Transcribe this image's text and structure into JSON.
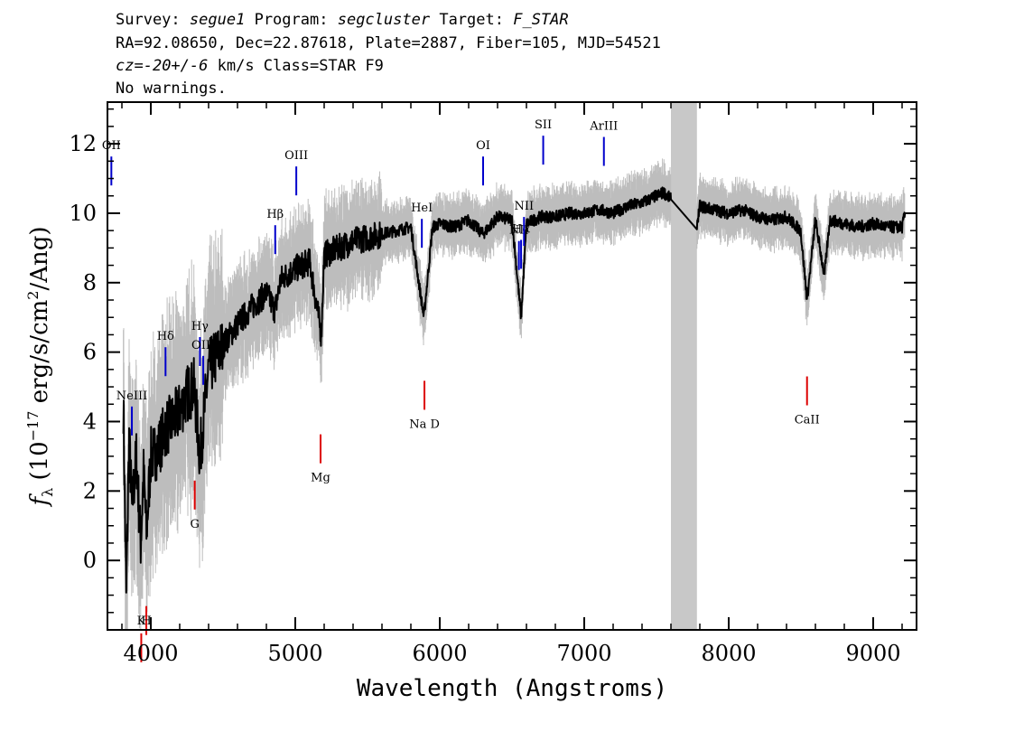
{
  "header": {
    "line1": {
      "survey_label": "Survey:",
      "survey_value": "segue1",
      "program_label": "Program:",
      "program_value": "segcluster",
      "target_label": "Target:",
      "target_value": "F_STAR"
    },
    "line2": "RA=92.08650, Dec=22.87618, Plate=2887, Fiber=105, MJD=54521",
    "line3": {
      "cz_prefix": "cz=",
      "cz_value": "-20+/-6",
      "cz_suffix": " km/s Class=STAR F9"
    },
    "line4": "No warnings."
  },
  "chart_data": {
    "type": "line",
    "xlabel": "Wavelength (Angstroms)",
    "ylabel": "f_λ (10^-17 erg/s/cm^2/Ang)",
    "xlim": [
      3700,
      9300
    ],
    "ylim": [
      -2.0,
      13.2
    ],
    "xticks": [
      4000,
      5000,
      6000,
      7000,
      8000,
      9000
    ],
    "yticks": [
      0,
      2,
      4,
      6,
      8,
      10,
      12
    ],
    "masked_region": [
      7600,
      7780
    ],
    "colors": {
      "flux": "#000000",
      "noise": "#bdbdbd",
      "emission": "#0000cc",
      "absorption": "#dd0000",
      "mask": "#c8c8c8"
    },
    "series": [
      {
        "x": [
          3810,
          3830,
          3850,
          3870,
          3900,
          3930,
          3950,
          3970,
          4000,
          4050,
          4100,
          4150,
          4200,
          4250,
          4300,
          4340,
          4400,
          4500,
          4600,
          4700,
          4800,
          4860,
          4900,
          5000,
          5100,
          5180,
          5200,
          5300,
          5400,
          5500,
          5600,
          5700,
          5800,
          5890,
          5950,
          6000,
          6100,
          6200,
          6300,
          6400,
          6500,
          6563,
          6600,
          6700,
          6800,
          6900,
          7000,
          7100,
          7200,
          7300,
          7400,
          7500,
          7550,
          7600,
          7780,
          7800,
          7900,
          8000,
          8100,
          8200,
          8300,
          8400,
          8498,
          8542,
          8600,
          8662,
          8700,
          8800,
          8900,
          9000,
          9100,
          9200,
          9220
        ],
        "y": [
          4.5,
          -1.0,
          3.5,
          1.5,
          3.0,
          0.5,
          2.5,
          0.8,
          3.0,
          3.2,
          3.8,
          4.0,
          4.3,
          4.8,
          5.0,
          3.0,
          5.5,
          6.2,
          6.8,
          7.3,
          7.7,
          7.2,
          8.1,
          8.4,
          8.6,
          6.5,
          8.8,
          9.0,
          9.2,
          9.3,
          9.4,
          9.5,
          9.6,
          7.0,
          9.6,
          9.7,
          9.6,
          9.8,
          9.4,
          9.9,
          9.8,
          7.0,
          9.7,
          9.9,
          9.9,
          10.0,
          10.0,
          10.1,
          10.0,
          10.2,
          10.3,
          10.5,
          10.6,
          10.4,
          9.7,
          10.2,
          10.1,
          10.0,
          10.1,
          9.9,
          9.8,
          9.9,
          9.5,
          7.5,
          9.8,
          8.2,
          9.8,
          9.7,
          9.6,
          9.7,
          9.6,
          9.6,
          10.0
        ]
      }
    ],
    "emission_lines": [
      {
        "label": "OII",
        "x": 3727
      },
      {
        "label": "NeIII",
        "x": 3869
      },
      {
        "label": "Hδ",
        "x": 4102
      },
      {
        "label": "Hγ",
        "x": 4340
      },
      {
        "label": "OIII",
        "x": 4363
      },
      {
        "label": "Hβ",
        "x": 4861
      },
      {
        "label": "OIII",
        "x": 5007
      },
      {
        "label": "HeI",
        "x": 5876
      },
      {
        "label": "OI",
        "x": 6300
      },
      {
        "label": "NII",
        "x": 6548
      },
      {
        "label": "Hα",
        "x": 6563
      },
      {
        "label": "NII",
        "x": 6583
      },
      {
        "label": "SII",
        "x": 6716
      },
      {
        "label": "ArIII",
        "x": 7136
      }
    ],
    "absorption_lines": [
      {
        "label": "K",
        "x": 3934
      },
      {
        "label": "H",
        "x": 3969
      },
      {
        "label": "G",
        "x": 4304
      },
      {
        "label": "Mg",
        "x": 5175
      },
      {
        "label": "Na D",
        "x": 5894
      },
      {
        "label": "CaII",
        "x": 8542
      }
    ]
  }
}
